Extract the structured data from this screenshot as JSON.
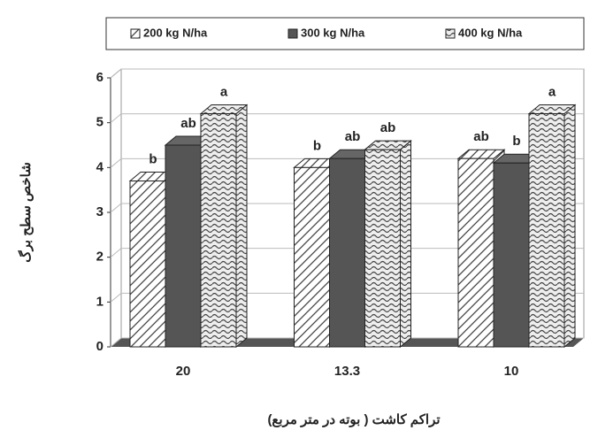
{
  "chart_data": {
    "type": "bar3d",
    "categories": [
      "20",
      "13.3",
      "10"
    ],
    "series": [
      {
        "name": "200 kg N/ha",
        "color": "#ffffff",
        "values": [
          3.7,
          4.0,
          4.2
        ],
        "annotations": [
          "b",
          "b",
          "ab"
        ]
      },
      {
        "name": "300 kg N/ha",
        "color": "#555555",
        "values": [
          4.5,
          4.2,
          4.1
        ],
        "annotations": [
          "ab",
          "ab",
          "b"
        ]
      },
      {
        "name": "400 kg N/ha",
        "color": "#dddddd",
        "values": [
          5.2,
          4.4,
          5.2
        ],
        "annotations": [
          "a",
          "ab",
          "a"
        ]
      }
    ],
    "ylabel": "شاخص سطح برگ",
    "xlabel": "تراکم کاشت ( بوته در متر مربع)",
    "ylim": [
      0,
      6
    ],
    "yticks": [
      0,
      1,
      2,
      3,
      4,
      5,
      6
    ],
    "grid": true,
    "legend": "top"
  }
}
